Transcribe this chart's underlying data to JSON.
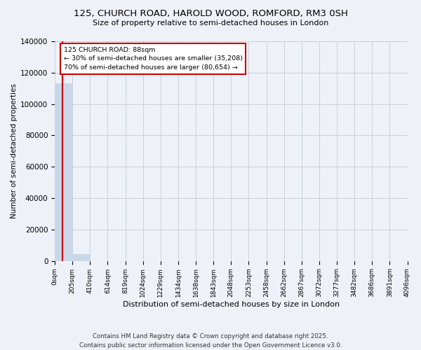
{
  "title_line1": "125, CHURCH ROAD, HAROLD WOOD, ROMFORD, RM3 0SH",
  "title_line2": "Size of property relative to semi-detached houses in London",
  "xlabel": "Distribution of semi-detached houses by size in London",
  "ylabel": "Number of semi-detached properties",
  "property_size": 88,
  "annotation_label": "125 CHURCH ROAD: 88sqm",
  "pct_smaller": 30,
  "count_smaller": 35208,
  "pct_larger": 70,
  "count_larger": 80654,
  "bar_color": "#c8d8ea",
  "vline_color": "#cc0000",
  "grid_color": "#c8d0dc",
  "background_color": "#eef2f8",
  "footer": "Contains HM Land Registry data © Crown copyright and database right 2025.\nContains public sector information licensed under the Open Government Licence v3.0.",
  "bin_edges": [
    0,
    205,
    410,
    614,
    819,
    1024,
    1229,
    1434,
    1638,
    1843,
    2048,
    2253,
    2458,
    2662,
    2867,
    3072,
    3277,
    3482,
    3686,
    3891,
    4096
  ],
  "bin_counts": [
    113000,
    4500,
    0,
    0,
    0,
    0,
    0,
    0,
    0,
    0,
    0,
    0,
    0,
    0,
    0,
    0,
    0,
    0,
    0,
    0
  ],
  "ylim": [
    0,
    140000
  ],
  "yticks": [
    0,
    20000,
    40000,
    60000,
    80000,
    100000,
    120000,
    140000
  ]
}
